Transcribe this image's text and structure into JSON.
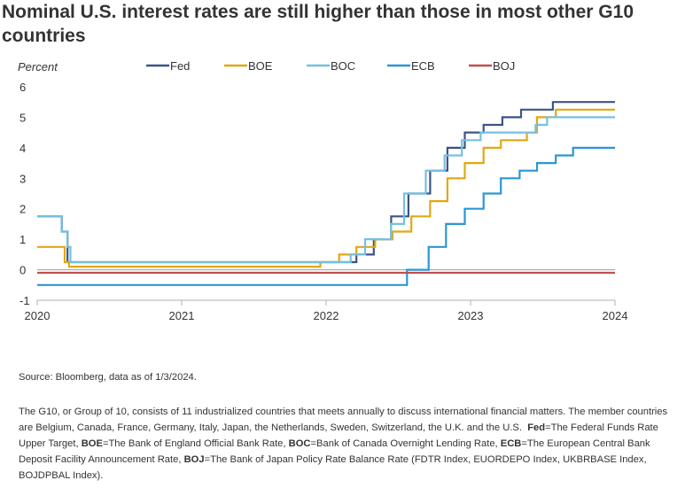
{
  "title": "Nominal U.S. interest rates are still higher than those in most other G10 countries",
  "chart_data": {
    "type": "line",
    "step": true,
    "ylabel": "Percent",
    "ylim": [
      -1,
      6
    ],
    "yticks": [
      6,
      5,
      4,
      3,
      2,
      1,
      0,
      -1
    ],
    "xlim": [
      2020,
      2024
    ],
    "xticks": [
      "2020",
      "2021",
      "2022",
      "2023",
      "2024"
    ],
    "legend_position": "top",
    "grid": false,
    "series": [
      {
        "name": "Fed",
        "color": "#3b5487",
        "points": [
          [
            2020.0,
            1.75
          ],
          [
            2020.17,
            1.25
          ],
          [
            2020.21,
            0.25
          ],
          [
            2022.21,
            0.5
          ],
          [
            2022.33,
            1.0
          ],
          [
            2022.45,
            1.75
          ],
          [
            2022.57,
            2.5
          ],
          [
            2022.72,
            3.25
          ],
          [
            2022.84,
            4.0
          ],
          [
            2022.96,
            4.5
          ],
          [
            2023.09,
            4.75
          ],
          [
            2023.22,
            5.0
          ],
          [
            2023.35,
            5.25
          ],
          [
            2023.57,
            5.5
          ],
          [
            2024.0,
            5.5
          ]
        ]
      },
      {
        "name": "BOE",
        "color": "#e0a814",
        "points": [
          [
            2020.0,
            0.75
          ],
          [
            2020.19,
            0.25
          ],
          [
            2020.22,
            0.1
          ],
          [
            2021.96,
            0.25
          ],
          [
            2022.09,
            0.5
          ],
          [
            2022.21,
            0.75
          ],
          [
            2022.34,
            1.0
          ],
          [
            2022.46,
            1.25
          ],
          [
            2022.59,
            1.75
          ],
          [
            2022.72,
            2.25
          ],
          [
            2022.84,
            3.0
          ],
          [
            2022.96,
            3.5
          ],
          [
            2023.09,
            4.0
          ],
          [
            2023.21,
            4.25
          ],
          [
            2023.39,
            4.5
          ],
          [
            2023.46,
            5.0
          ],
          [
            2023.59,
            5.25
          ],
          [
            2024.0,
            5.25
          ]
        ]
      },
      {
        "name": "BOC",
        "color": "#74c0e0",
        "points": [
          [
            2020.0,
            1.75
          ],
          [
            2020.17,
            1.25
          ],
          [
            2020.21,
            0.75
          ],
          [
            2020.23,
            0.25
          ],
          [
            2022.17,
            0.5
          ],
          [
            2022.27,
            1.0
          ],
          [
            2022.45,
            1.5
          ],
          [
            2022.54,
            2.5
          ],
          [
            2022.69,
            3.25
          ],
          [
            2022.82,
            3.75
          ],
          [
            2022.94,
            4.25
          ],
          [
            2023.07,
            4.5
          ],
          [
            2023.45,
            4.75
          ],
          [
            2023.53,
            5.0
          ],
          [
            2024.0,
            5.0
          ]
        ]
      },
      {
        "name": "ECB",
        "color": "#2a97d4",
        "points": [
          [
            2020.0,
            -0.5
          ],
          [
            2022.56,
            0.0
          ],
          [
            2022.71,
            0.75
          ],
          [
            2022.83,
            1.5
          ],
          [
            2022.96,
            2.0
          ],
          [
            2023.09,
            2.5
          ],
          [
            2023.21,
            3.0
          ],
          [
            2023.34,
            3.25
          ],
          [
            2023.46,
            3.5
          ],
          [
            2023.59,
            3.75
          ],
          [
            2023.71,
            4.0
          ],
          [
            2024.0,
            4.0
          ]
        ]
      },
      {
        "name": "BOJ",
        "color": "#c0504d",
        "points": [
          [
            2020.0,
            -0.1
          ],
          [
            2024.0,
            -0.1
          ]
        ]
      }
    ]
  },
  "source": "Source: Bloomberg, data as of 1/3/2024.",
  "notes": {
    "intro": "The G10, or Group of 10, consists of 11 industrialized countries that meets annually to discuss international financial matters. The member countries are Belgium, Canada, France, Germany, Italy, Japan, the Netherlands, Sweden, Switzerland, the U.K. and the U.S.",
    "fed_key": "Fed",
    "fed_text": "=The Federal Funds Rate Upper Target,",
    "boe_key": "BOE",
    "boe_text": "=The Bank of England Official Bank Rate,",
    "boc_key": "BOC",
    "boc_text": "=Bank of Canada Overnight Lending Rate,",
    "ecb_key": "ECB",
    "ecb_text": "=The European Central Bank Deposit Facility Announcement Rate,",
    "boj_key": "BOJ",
    "boj_text": "=The Bank of Japan Policy Rate Balance Rate (FDTR Index, EUORDEPO Index, UKBRBASE Index, BOJDPBAL Index)."
  }
}
